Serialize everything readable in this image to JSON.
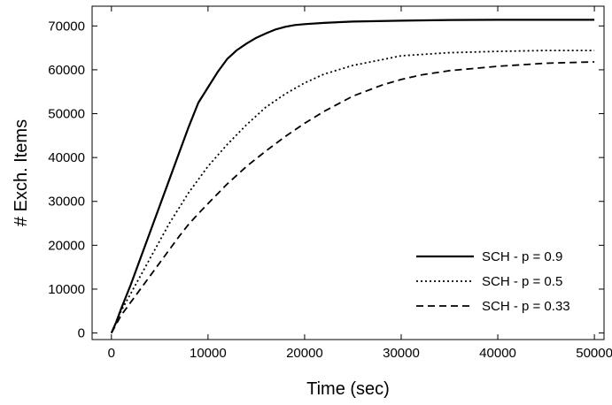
{
  "chart_data": {
    "type": "line",
    "xlabel": "Time (sec)",
    "ylabel": "# Exch. Items",
    "xlim": [
      -2000,
      51000
    ],
    "ylim": [
      -1500,
      74500
    ],
    "x_ticks": [
      0,
      10000,
      20000,
      30000,
      40000,
      50000
    ],
    "x_tick_labels": [
      "0",
      "10000",
      "20000",
      "30000",
      "40000",
      "50000"
    ],
    "y_ticks": [
      0,
      10000,
      20000,
      30000,
      40000,
      50000,
      60000,
      70000
    ],
    "y_tick_labels": [
      "0",
      "10000",
      "20000",
      "30000",
      "40000",
      "50000",
      "60000",
      "70000"
    ],
    "grid": false,
    "legend_position": "bottom-right",
    "series": [
      {
        "name": "SCH - p = 0.9",
        "style": "solid",
        "color": "#000000",
        "x": [
          0,
          500,
          1000,
          2000,
          3000,
          4000,
          5000,
          6000,
          7000,
          8000,
          9000,
          10000,
          11000,
          12000,
          13000,
          14000,
          15000,
          16000,
          17000,
          18000,
          19000,
          20000,
          22000,
          25000,
          30000,
          35000,
          40000,
          45000,
          50000
        ],
        "y": [
          0,
          2500,
          5500,
          11000,
          17000,
          23000,
          29000,
          35000,
          41000,
          47000,
          52500,
          56000,
          59500,
          62500,
          64500,
          66000,
          67300,
          68300,
          69200,
          69800,
          70200,
          70400,
          70700,
          71000,
          71200,
          71350,
          71400,
          71400,
          71400
        ]
      },
      {
        "name": "SCH - p = 0.5",
        "style": "dotted",
        "color": "#000000",
        "x": [
          0,
          500,
          1000,
          2000,
          3000,
          4000,
          5000,
          6000,
          7000,
          8000,
          9000,
          10000,
          12000,
          14000,
          16000,
          18000,
          20000,
          22000,
          25000,
          28000,
          30000,
          35000,
          40000,
          45000,
          50000
        ],
        "y": [
          0,
          2500,
          5000,
          9000,
          13000,
          17000,
          21000,
          25000,
          28500,
          32000,
          35000,
          38000,
          43000,
          47500,
          51500,
          54500,
          57000,
          59000,
          61000,
          62300,
          63200,
          63900,
          64200,
          64400,
          64400
        ]
      },
      {
        "name": "SCH - p = 0.33",
        "style": "dashed",
        "color": "#000000",
        "x": [
          0,
          500,
          1000,
          2000,
          3000,
          4000,
          5000,
          6000,
          7000,
          8000,
          9000,
          10000,
          12000,
          14000,
          16000,
          18000,
          20000,
          22000,
          25000,
          28000,
          30000,
          32000,
          35000,
          40000,
          45000,
          50000
        ],
        "y": [
          0,
          2000,
          4000,
          7000,
          10000,
          13000,
          16000,
          19000,
          22000,
          24800,
          27200,
          29500,
          34000,
          38000,
          41500,
          44800,
          47800,
          50500,
          54000,
          56500,
          57800,
          58800,
          59800,
          60800,
          61500,
          61800
        ]
      }
    ]
  }
}
